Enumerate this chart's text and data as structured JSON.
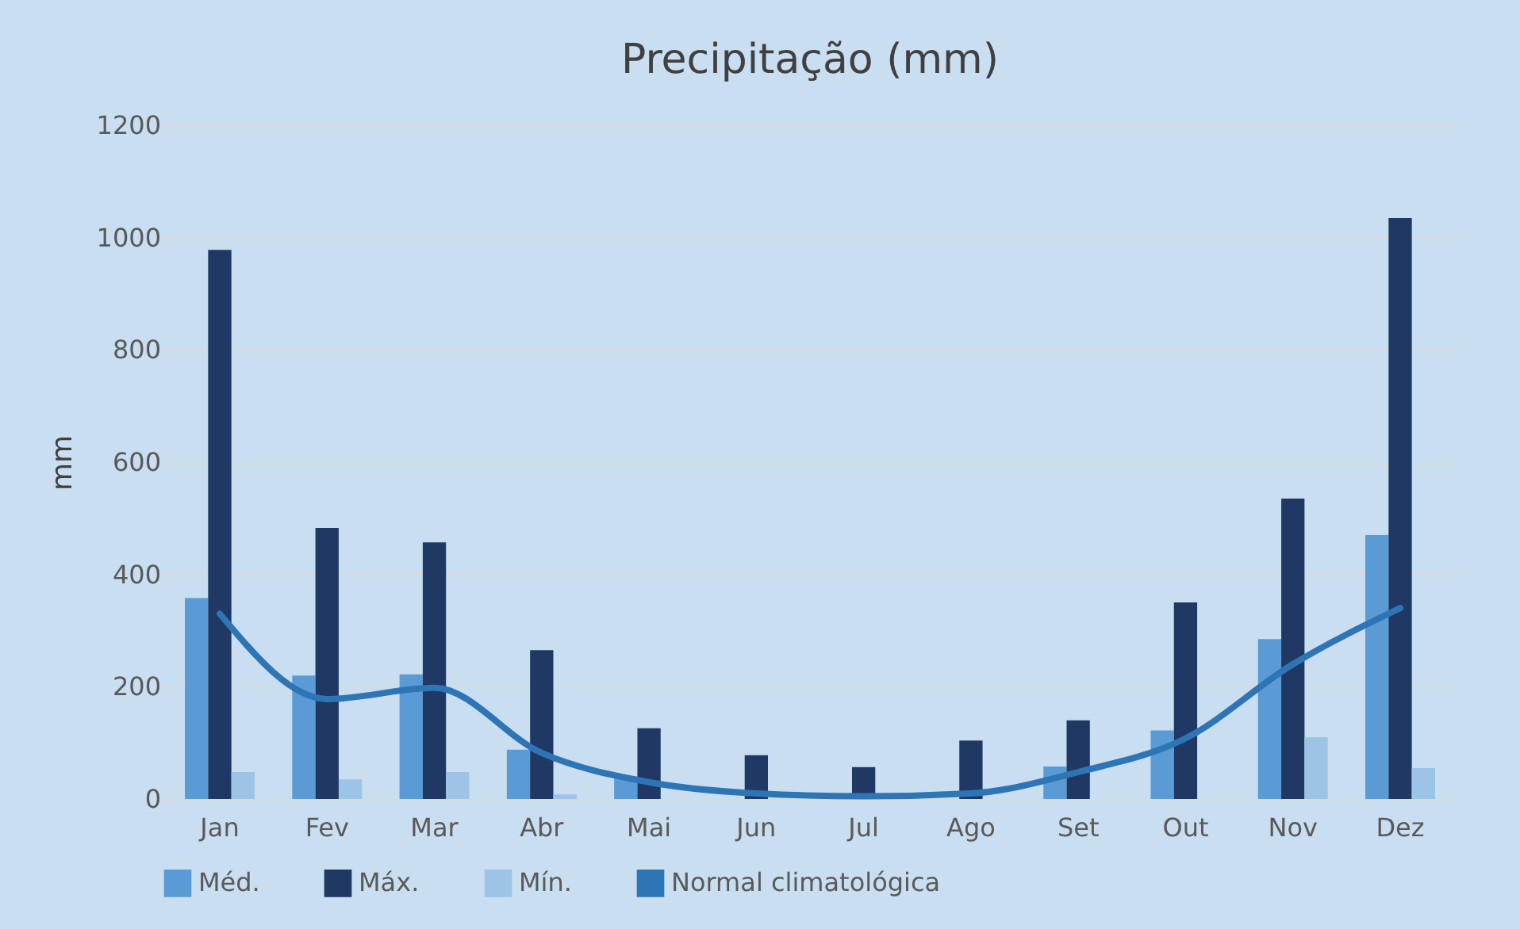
{
  "chart_data": {
    "type": "bar",
    "title": "Precipitação (mm)",
    "ylabel": "mm",
    "categories": [
      "Jan",
      "Fev",
      "Mar",
      "Abr",
      "Mai",
      "Jun",
      "Jul",
      "Ago",
      "Set",
      "Out",
      "Nov",
      "Dez"
    ],
    "series": [
      {
        "name": "Méd.",
        "color": "#5b9bd5",
        "values": [
          358,
          220,
          222,
          88,
          40,
          null,
          null,
          null,
          58,
          122,
          285,
          470
        ]
      },
      {
        "name": "Máx.",
        "color": "#1f3864",
        "values": [
          978,
          483,
          457,
          265,
          126,
          78,
          57,
          104,
          140,
          350,
          535,
          1035
        ]
      },
      {
        "name": "Mín.",
        "color": "#9dc3e6",
        "values": [
          48,
          35,
          48,
          8,
          null,
          0,
          0,
          0,
          0,
          0,
          110,
          55
        ]
      },
      {
        "name": "Normal climatológica",
        "type": "line",
        "color": "#2e75b6",
        "values": [
          330,
          178,
          198,
          82,
          30,
          10,
          5,
          10,
          48,
          108,
          240,
          340
        ]
      }
    ],
    "ylim": [
      0,
      1200
    ],
    "yticks": [
      0,
      200,
      400,
      600,
      800,
      1000,
      1200
    ],
    "grid": "y",
    "legend": "bottom"
  }
}
